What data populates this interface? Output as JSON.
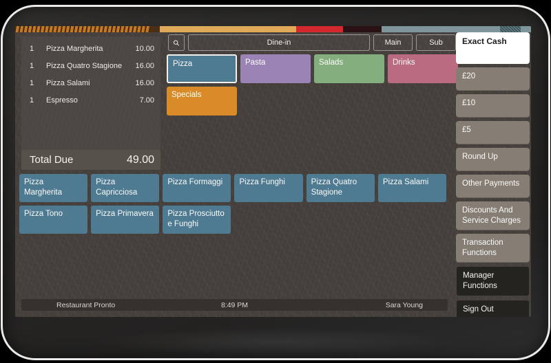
{
  "order_panel": {
    "items": [
      {
        "qty": "1",
        "name": "Pizza Margherita",
        "price": "10.00"
      },
      {
        "qty": "1",
        "name": "Pizza Quatro Stagione",
        "price": "16.00"
      },
      {
        "qty": "1",
        "name": "Pizza Salami",
        "price": "16.00"
      },
      {
        "qty": "1",
        "name": "Espresso",
        "price": "7.00"
      }
    ],
    "total_label": "Total Due",
    "total_value": "49.00"
  },
  "top_bar": {
    "search_icon": "magnifier-icon",
    "order_type": "Dine-in",
    "main_label": "Main",
    "sub_label": "Sub"
  },
  "categories": [
    {
      "label": "Pizza",
      "color": "#4e7b92",
      "selected": true
    },
    {
      "label": "Pasta",
      "color": "#9b84b5",
      "selected": false
    },
    {
      "label": "Salads",
      "color": "#84ae7e",
      "selected": false
    },
    {
      "label": "Drinks",
      "color": "#ba6b80",
      "selected": false
    },
    {
      "label": "Specials",
      "color": "#d98b28",
      "selected": false
    }
  ],
  "menu_items": [
    "Pizza Margherita",
    "Pizza Capricciosa",
    "Pizza Formaggi",
    "Pizza Funghi",
    "Pizza Quatro Stagione",
    "Pizza Salami",
    "Pizza Tono",
    "Pizza Primavera",
    "Pizza Prosciutto e Funghi"
  ],
  "sidebar": [
    {
      "label": "Exact Cash",
      "style": "white"
    },
    {
      "label": "£20",
      "style": "gray"
    },
    {
      "label": "£10",
      "style": "gray"
    },
    {
      "label": "£5",
      "style": "gray"
    },
    {
      "label": "Round Up",
      "style": "gray"
    },
    {
      "label": "Other Payments",
      "style": "gray"
    },
    {
      "label": "Discounts And Service Charges",
      "style": "gray"
    },
    {
      "label": "Transaction Functions",
      "style": "gray"
    },
    {
      "label": "Manager Functions",
      "style": "dark"
    },
    {
      "label": "Sign Out",
      "style": "dark"
    }
  ],
  "status_bar": {
    "location": "Restaurant Pronto",
    "time": "8:49 PM",
    "user": "Sara Young"
  },
  "colors": {
    "menu_button": "#4e7b92",
    "app_background": "#45403c",
    "order_panel": "#4c4743",
    "total_bar": "#57514b",
    "status_bar": "#35312d",
    "sidebar_gray": "#867e75",
    "sidebar_dark": "#252320",
    "exact_cash_white": "#ffffff",
    "selected_border": "#f4f1ed"
  },
  "decorative_strip": {
    "segments": [
      {
        "color": "#bf7a26",
        "width_pct": 26,
        "pattern": "tiger-stripes"
      },
      {
        "color": "#4a2f16",
        "width_pct": 2
      },
      {
        "color": "#dfa959",
        "width_pct": 26.5
      },
      {
        "color": "#d2282e",
        "width_pct": 9
      },
      {
        "color": "#2a1214",
        "width_pct": 7.5
      },
      {
        "color": "#7e959c",
        "width_pct": 23
      },
      {
        "color": "#5d7a80",
        "width_pct": 4,
        "pattern": "speckle"
      },
      {
        "color": "#7e959c",
        "width_pct": 2
      }
    ]
  }
}
